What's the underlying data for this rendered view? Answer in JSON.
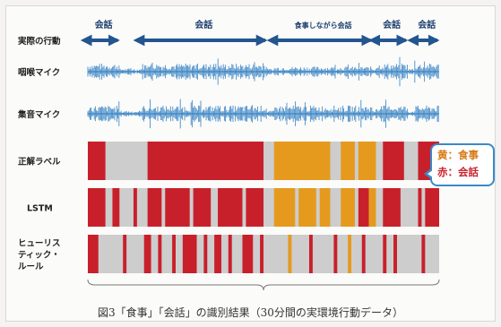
{
  "chart_data": {
    "type": "timeline",
    "x_range": [
      0,
      100
    ],
    "activity_row_label": "実際の行動",
    "activities": [
      {
        "label": "会話",
        "start": 0,
        "end": 9
      },
      {
        "label": "会話",
        "start": 15,
        "end": 51
      },
      {
        "label": "食事しながら会話",
        "start": 53,
        "end": 81
      },
      {
        "label": "会話",
        "start": 82,
        "end": 91
      },
      {
        "label": "会話",
        "start": 93,
        "end": 100
      }
    ],
    "audio_tracks": [
      {
        "label": "咽喉マイク",
        "color": "#2a7bbf"
      },
      {
        "label": "集音マイク",
        "color": "#2a7bbf"
      }
    ],
    "label_tracks": [
      {
        "label": "正解ラベル",
        "segments": [
          {
            "start": 0,
            "end": 5,
            "class": "conversation"
          },
          {
            "start": 17,
            "end": 50,
            "class": "conversation"
          },
          {
            "start": 53,
            "end": 69,
            "class": "eating"
          },
          {
            "start": 72,
            "end": 76,
            "class": "eating"
          },
          {
            "start": 77,
            "end": 82,
            "class": "eating"
          },
          {
            "start": 84,
            "end": 90,
            "class": "conversation"
          },
          {
            "start": 94,
            "end": 100,
            "class": "conversation"
          }
        ]
      },
      {
        "label": "LSTM",
        "segments": [
          {
            "start": 0,
            "end": 5,
            "class": "conversation"
          },
          {
            "start": 7,
            "end": 9,
            "class": "conversation"
          },
          {
            "start": 13,
            "end": 14,
            "class": "conversation"
          },
          {
            "start": 17,
            "end": 21,
            "class": "conversation"
          },
          {
            "start": 22,
            "end": 29,
            "class": "conversation"
          },
          {
            "start": 30,
            "end": 35,
            "class": "conversation"
          },
          {
            "start": 37,
            "end": 44,
            "class": "conversation"
          },
          {
            "start": 45,
            "end": 50,
            "class": "conversation"
          },
          {
            "start": 53,
            "end": 59,
            "class": "eating"
          },
          {
            "start": 60,
            "end": 65,
            "class": "eating"
          },
          {
            "start": 66,
            "end": 69,
            "class": "eating"
          },
          {
            "start": 72,
            "end": 76,
            "class": "eating"
          },
          {
            "start": 77,
            "end": 80,
            "class": "conversation"
          },
          {
            "start": 80,
            "end": 82,
            "class": "eating"
          },
          {
            "start": 84,
            "end": 89,
            "class": "conversation"
          },
          {
            "start": 94,
            "end": 95,
            "class": "conversation"
          },
          {
            "start": 96,
            "end": 100,
            "class": "conversation"
          }
        ]
      },
      {
        "label": "ヒューリスティック・ルール",
        "label_lines": [
          "ヒューリス",
          "ティック・",
          "ルール"
        ],
        "segments": [
          {
            "start": 0,
            "end": 3,
            "class": "conversation"
          },
          {
            "start": 10,
            "end": 11,
            "class": "conversation"
          },
          {
            "start": 16,
            "end": 18,
            "class": "conversation"
          },
          {
            "start": 20,
            "end": 21,
            "class": "conversation"
          },
          {
            "start": 24,
            "end": 25,
            "class": "conversation"
          },
          {
            "start": 27,
            "end": 31,
            "class": "conversation"
          },
          {
            "start": 33,
            "end": 34,
            "class": "conversation"
          },
          {
            "start": 36,
            "end": 38,
            "class": "conversation"
          },
          {
            "start": 40,
            "end": 41,
            "class": "conversation"
          },
          {
            "start": 44,
            "end": 47,
            "class": "conversation"
          },
          {
            "start": 49,
            "end": 50,
            "class": "conversation"
          },
          {
            "start": 57,
            "end": 58,
            "class": "eating"
          },
          {
            "start": 63,
            "end": 64,
            "class": "conversation"
          },
          {
            "start": 70,
            "end": 71,
            "class": "conversation"
          },
          {
            "start": 74,
            "end": 75,
            "class": "eating"
          },
          {
            "start": 78,
            "end": 79,
            "class": "conversation"
          },
          {
            "start": 84,
            "end": 85,
            "class": "conversation"
          },
          {
            "start": 87,
            "end": 88,
            "class": "conversation"
          },
          {
            "start": 95,
            "end": 96,
            "class": "conversation"
          }
        ]
      }
    ],
    "legend": [
      {
        "text": "黄：食事",
        "class": "eating",
        "color": "#d87b1a"
      },
      {
        "text": "赤：会話",
        "class": "conversation",
        "color": "#c9252f"
      }
    ],
    "colors": {
      "conversation": "#c8202b",
      "eating": "#e59a1e",
      "background": "#cdcdcd",
      "arrow": "#23558f"
    },
    "caption": "図3「食事」「会話」の識別結果（30分間の実環境行動データ）"
  }
}
